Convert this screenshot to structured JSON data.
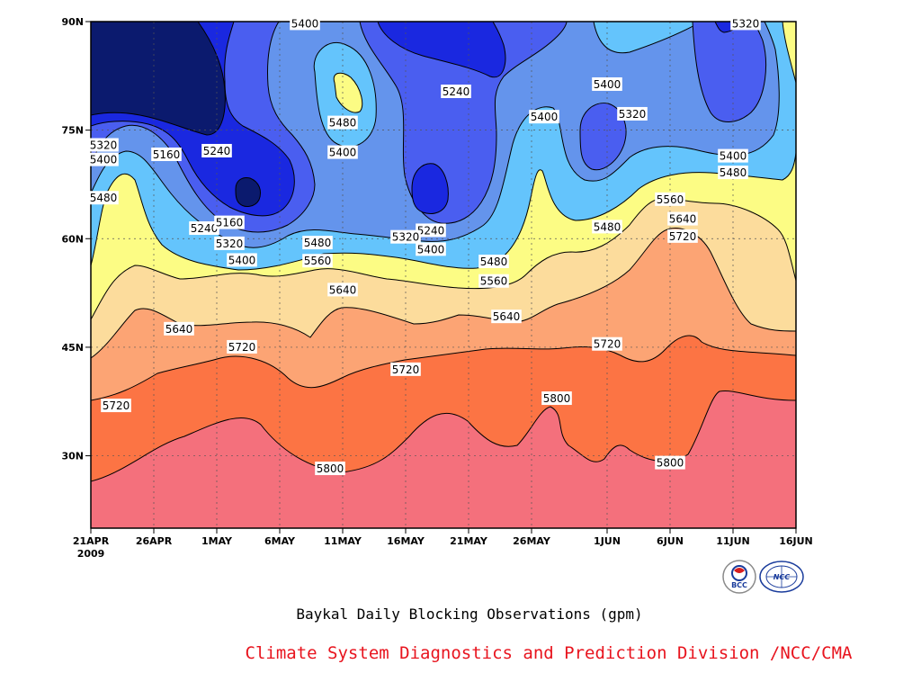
{
  "chart_data": {
    "type": "contour",
    "caption": "Baykal Daily Blocking Observations (gpm)",
    "credit": "Climate System Diagnostics and Prediction Division /NCC/CMA",
    "logos": [
      "BCC",
      "NCC"
    ],
    "x_ticks": [
      "21APR",
      "26APR",
      "1MAY",
      "6MAY",
      "11MAY",
      "16MAY",
      "21MAY",
      "26MAY",
      "1JUN",
      "6JUN",
      "11JUN",
      "16JUN"
    ],
    "x_year": "2009",
    "y_ticks": [
      "30N",
      "45N",
      "60N",
      "75N",
      "90N"
    ],
    "xlim": [
      "2009-04-21",
      "2009-06-16"
    ],
    "ylim": [
      20,
      90
    ],
    "levels": [
      5160,
      5240,
      5320,
      5400,
      5480,
      5560,
      5640,
      5720,
      5800
    ],
    "colors": {
      "below_5160": "#0b1a6e",
      "5160_5240": "#1a28e0",
      "5240_5320": "#4a5ef0",
      "5320_5400": "#6494ec",
      "5400_5480": "#64c4fc",
      "5480_5560": "#fcfc84",
      "5560_5640": "#fcdc9c",
      "5640_5720": "#fca474",
      "5720_5800": "#fc7444",
      "above_5800": "#f4707c"
    },
    "contour_labels": [
      {
        "value": "5400",
        "date": "2009-05-08",
        "lat": 89.7
      },
      {
        "value": "5320",
        "date": "2009-06-12",
        "lat": 89.7
      },
      {
        "value": "5240",
        "date": "2009-05-20",
        "lat": 80.3
      },
      {
        "value": "5400",
        "date": "2009-06-01",
        "lat": 81.3
      },
      {
        "value": "5320",
        "date": "2009-06-03",
        "lat": 77.2
      },
      {
        "value": "5480",
        "date": "2009-05-11",
        "lat": 76.0
      },
      {
        "value": "5400",
        "date": "2009-05-27",
        "lat": 76.8
      },
      {
        "value": "5400",
        "date": "2009-05-11",
        "lat": 71.9
      },
      {
        "value": "5320",
        "date": "2009-04-22",
        "lat": 72.9
      },
      {
        "value": "5400",
        "date": "2009-04-22",
        "lat": 70.9
      },
      {
        "value": "5160",
        "date": "2009-04-27",
        "lat": 71.6
      },
      {
        "value": "5240",
        "date": "2009-05-01",
        "lat": 72.1
      },
      {
        "value": "5400",
        "date": "2009-06-11",
        "lat": 71.4
      },
      {
        "value": "5480",
        "date": "2009-06-11",
        "lat": 69.1
      },
      {
        "value": "5480",
        "date": "2009-04-22",
        "lat": 65.6
      },
      {
        "value": "5560",
        "date": "2009-06-06",
        "lat": 65.4
      },
      {
        "value": "5240",
        "date": "2009-04-30",
        "lat": 61.4
      },
      {
        "value": "5160",
        "date": "2009-05-02",
        "lat": 62.2
      },
      {
        "value": "5640",
        "date": "2009-06-07",
        "lat": 62.7
      },
      {
        "value": "5240",
        "date": "2009-05-18",
        "lat": 61.1
      },
      {
        "value": "5720",
        "date": "2009-06-07",
        "lat": 60.3
      },
      {
        "value": "5320",
        "date": "2009-05-16",
        "lat": 60.2
      },
      {
        "value": "5480",
        "date": "2009-06-01",
        "lat": 61.6
      },
      {
        "value": "5320",
        "date": "2009-05-02",
        "lat": 59.3
      },
      {
        "value": "5480",
        "date": "2009-05-09",
        "lat": 59.4
      },
      {
        "value": "5400",
        "date": "2009-05-18",
        "lat": 58.5
      },
      {
        "value": "5400",
        "date": "2009-05-03",
        "lat": 57.0
      },
      {
        "value": "5560",
        "date": "2009-05-09",
        "lat": 56.9
      },
      {
        "value": "5480",
        "date": "2009-05-23",
        "lat": 56.8
      },
      {
        "value": "5560",
        "date": "2009-05-23",
        "lat": 54.1
      },
      {
        "value": "5640",
        "date": "2009-05-11",
        "lat": 52.9
      },
      {
        "value": "5640",
        "date": "2009-05-24",
        "lat": 49.2
      },
      {
        "value": "5640",
        "date": "2009-04-28",
        "lat": 47.5
      },
      {
        "value": "5720",
        "date": "2009-05-03",
        "lat": 45.0
      },
      {
        "value": "5720",
        "date": "2009-06-01",
        "lat": 45.4
      },
      {
        "value": "5720",
        "date": "2009-05-16",
        "lat": 41.9
      },
      {
        "value": "5720",
        "date": "2009-04-23",
        "lat": 36.9
      },
      {
        "value": "5800",
        "date": "2009-05-28",
        "lat": 37.9
      },
      {
        "value": "5800",
        "date": "2009-05-10",
        "lat": 28.2
      },
      {
        "value": "5800",
        "date": "2009-06-06",
        "lat": 29.0
      }
    ]
  }
}
